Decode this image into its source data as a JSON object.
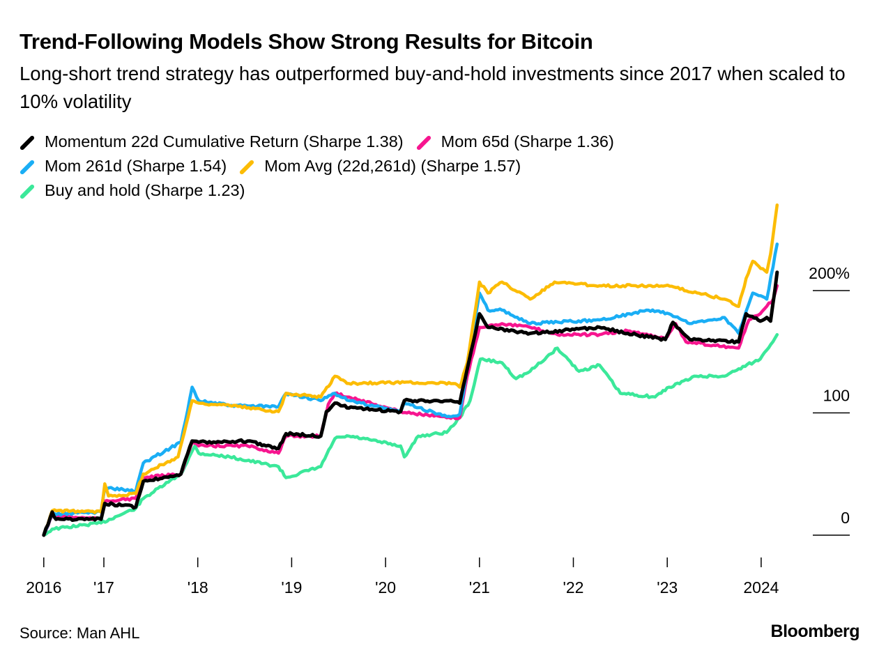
{
  "title": "Trend-Following Models Show Strong Results for Bitcoin",
  "subtitle": "Long-short trend strategy has outperformed buy-and-hold investments since 2017 when scaled to 10% volatility",
  "source": "Source: Man AHL",
  "logo": "Bloomberg",
  "chart_data": {
    "type": "line",
    "title": "Trend-Following Models Show Strong Results for Bitcoin",
    "xlabel": "",
    "ylabel": "",
    "ylim": [
      0,
      200
    ],
    "y_ticks": [
      {
        "value": 200,
        "label": "200%"
      },
      {
        "value": 100,
        "label": "100"
      },
      {
        "value": 0,
        "label": "0"
      }
    ],
    "x_ticks": [
      {
        "value": 2016.36,
        "label": "2016"
      },
      {
        "value": 2017,
        "label": "'17"
      },
      {
        "value": 2018,
        "label": "'18"
      },
      {
        "value": 2019,
        "label": "'19"
      },
      {
        "value": 2020,
        "label": "'20"
      },
      {
        "value": 2021,
        "label": "'21"
      },
      {
        "value": 2022,
        "label": "'22"
      },
      {
        "value": 2023,
        "label": "'23"
      },
      {
        "value": 2024,
        "label": "2024"
      }
    ],
    "grid": false,
    "legend_position": "top-left",
    "series": [
      {
        "name": "Buy and hold (Sharpe 1.23)",
        "color": "#3be89a",
        "points": [
          [
            2016.36,
            0
          ],
          [
            2016.45,
            5
          ],
          [
            2016.97,
            10
          ],
          [
            2017.34,
            22
          ],
          [
            2017.42,
            30
          ],
          [
            2017.82,
            50
          ],
          [
            2017.97,
            73
          ],
          [
            2018.01,
            67
          ],
          [
            2018.34,
            64
          ],
          [
            2018.86,
            56
          ],
          [
            2018.94,
            47
          ],
          [
            2019.31,
            56
          ],
          [
            2019.46,
            79
          ],
          [
            2019.61,
            81
          ],
          [
            2020.16,
            73
          ],
          [
            2020.2,
            64
          ],
          [
            2020.35,
            81
          ],
          [
            2020.65,
            84
          ],
          [
            2020.79,
            96
          ],
          [
            2020.9,
            110
          ],
          [
            2021.01,
            144
          ],
          [
            2021.24,
            141
          ],
          [
            2021.39,
            128
          ],
          [
            2021.54,
            134
          ],
          [
            2021.83,
            153
          ],
          [
            2022.06,
            134
          ],
          [
            2022.28,
            139
          ],
          [
            2022.5,
            116
          ],
          [
            2022.87,
            113
          ],
          [
            2023.02,
            121
          ],
          [
            2023.31,
            130
          ],
          [
            2023.61,
            130
          ],
          [
            2023.76,
            136
          ],
          [
            2023.99,
            144
          ],
          [
            2024.17,
            164
          ]
        ]
      },
      {
        "name": "Mom 65d (Sharpe 1.36)",
        "color": "#f7158f",
        "points": [
          [
            2016.36,
            0
          ],
          [
            2016.45,
            16
          ],
          [
            2016.97,
            13
          ],
          [
            2017.01,
            28
          ],
          [
            2017.34,
            30
          ],
          [
            2017.42,
            47
          ],
          [
            2017.82,
            50
          ],
          [
            2017.94,
            76
          ],
          [
            2018.01,
            73
          ],
          [
            2018.53,
            73
          ],
          [
            2018.86,
            67
          ],
          [
            2018.94,
            81
          ],
          [
            2019.31,
            81
          ],
          [
            2019.39,
            107
          ],
          [
            2019.46,
            116
          ],
          [
            2019.61,
            113
          ],
          [
            2020.16,
            101
          ],
          [
            2020.65,
            96
          ],
          [
            2020.79,
            96
          ],
          [
            2020.87,
            130
          ],
          [
            2021.0,
            170
          ],
          [
            2021.24,
            173
          ],
          [
            2021.54,
            170
          ],
          [
            2021.83,
            164
          ],
          [
            2022.28,
            164
          ],
          [
            2022.58,
            167
          ],
          [
            2022.98,
            161
          ],
          [
            2023.09,
            173
          ],
          [
            2023.2,
            158
          ],
          [
            2023.76,
            153
          ],
          [
            2023.87,
            176
          ],
          [
            2023.99,
            181
          ],
          [
            2024.13,
            193
          ],
          [
            2024.17,
            204
          ]
        ]
      },
      {
        "name": "Mom 261d (Sharpe 1.54)",
        "color": "#1aaef5",
        "points": [
          [
            2016.36,
            0
          ],
          [
            2016.45,
            17
          ],
          [
            2016.97,
            19
          ],
          [
            2017.01,
            39
          ],
          [
            2017.34,
            36
          ],
          [
            2017.42,
            59
          ],
          [
            2017.82,
            76
          ],
          [
            2017.94,
            121
          ],
          [
            2018.01,
            110
          ],
          [
            2018.34,
            106
          ],
          [
            2018.86,
            105
          ],
          [
            2018.94,
            116
          ],
          [
            2019.31,
            110
          ],
          [
            2019.46,
            116
          ],
          [
            2019.61,
            110
          ],
          [
            2020.16,
            101
          ],
          [
            2020.2,
            108
          ],
          [
            2020.65,
            97
          ],
          [
            2020.79,
            99
          ],
          [
            2020.87,
            136
          ],
          [
            2021.0,
            198
          ],
          [
            2021.09,
            184
          ],
          [
            2021.24,
            184
          ],
          [
            2021.54,
            173
          ],
          [
            2022.28,
            176
          ],
          [
            2022.8,
            184
          ],
          [
            2023.02,
            181
          ],
          [
            2023.24,
            173
          ],
          [
            2023.61,
            178
          ],
          [
            2023.76,
            165
          ],
          [
            2023.91,
            198
          ],
          [
            2024.06,
            193
          ],
          [
            2024.17,
            238
          ]
        ]
      },
      {
        "name": "Mom Avg (22d,261d) (Sharpe 1.57)",
        "color": "#fcbc05",
        "points": [
          [
            2016.36,
            0
          ],
          [
            2016.45,
            20
          ],
          [
            2016.97,
            19
          ],
          [
            2017.01,
            42
          ],
          [
            2017.05,
            32
          ],
          [
            2017.34,
            34
          ],
          [
            2017.42,
            50
          ],
          [
            2017.79,
            64
          ],
          [
            2017.94,
            110
          ],
          [
            2018.01,
            108
          ],
          [
            2018.34,
            106
          ],
          [
            2018.86,
            101
          ],
          [
            2018.94,
            116
          ],
          [
            2019.31,
            113
          ],
          [
            2019.46,
            130
          ],
          [
            2019.61,
            124
          ],
          [
            2020.2,
            125
          ],
          [
            2020.72,
            124
          ],
          [
            2020.79,
            121
          ],
          [
            2020.87,
            141
          ],
          [
            2021.0,
            207
          ],
          [
            2021.09,
            198
          ],
          [
            2021.24,
            207
          ],
          [
            2021.54,
            193
          ],
          [
            2021.8,
            207
          ],
          [
            2022.28,
            204
          ],
          [
            2022.98,
            204
          ],
          [
            2023.61,
            193
          ],
          [
            2023.76,
            187
          ],
          [
            2023.84,
            210
          ],
          [
            2023.91,
            224
          ],
          [
            2024.06,
            215
          ],
          [
            2024.1,
            230
          ],
          [
            2024.17,
            270
          ]
        ]
      },
      {
        "name": "Momentum 22d Cumulative Return (Sharpe 1.38)",
        "color": "#000000",
        "points": [
          [
            2016.36,
            0
          ],
          [
            2016.45,
            19
          ],
          [
            2016.49,
            13
          ],
          [
            2016.97,
            13
          ],
          [
            2017.01,
            26
          ],
          [
            2017.34,
            23
          ],
          [
            2017.42,
            44
          ],
          [
            2017.82,
            50
          ],
          [
            2017.94,
            77
          ],
          [
            2018.01,
            76
          ],
          [
            2018.53,
            77
          ],
          [
            2018.86,
            71
          ],
          [
            2018.94,
            83
          ],
          [
            2019.31,
            81
          ],
          [
            2019.37,
            101
          ],
          [
            2019.46,
            108
          ],
          [
            2019.61,
            104
          ],
          [
            2020.16,
            101
          ],
          [
            2020.2,
            110
          ],
          [
            2020.65,
            110
          ],
          [
            2020.79,
            108
          ],
          [
            2020.87,
            136
          ],
          [
            2021.0,
            181
          ],
          [
            2021.09,
            170
          ],
          [
            2021.54,
            165
          ],
          [
            2022.28,
            170
          ],
          [
            2022.58,
            165
          ],
          [
            2022.98,
            160
          ],
          [
            2023.06,
            174
          ],
          [
            2023.24,
            160
          ],
          [
            2023.76,
            158
          ],
          [
            2023.84,
            181
          ],
          [
            2023.99,
            175
          ],
          [
            2024.06,
            178
          ],
          [
            2024.1,
            175
          ],
          [
            2024.17,
            215
          ]
        ]
      }
    ]
  }
}
